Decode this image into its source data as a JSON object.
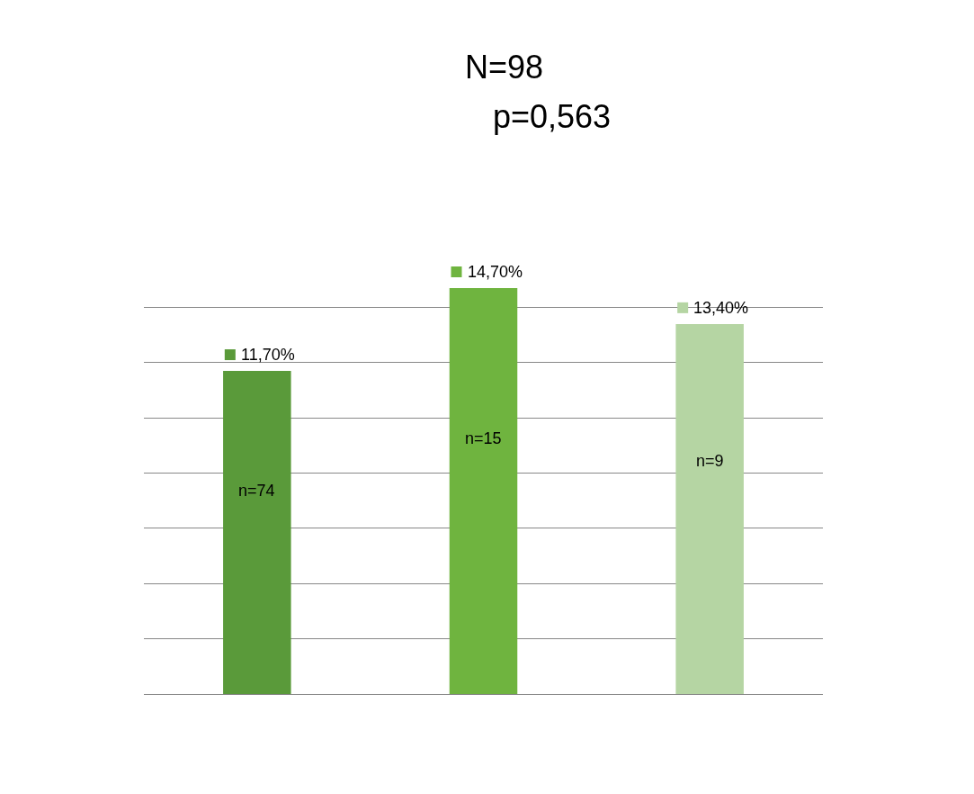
{
  "chart_data": {
    "type": "bar",
    "title": "N=98",
    "subtitle": "p=0,563",
    "categories": [
      null,
      null,
      null
    ],
    "values": [
      11.7,
      14.7,
      13.4
    ],
    "colors": [
      "#5a9a3a",
      "#6fb43f",
      "#b5d5a3"
    ],
    "value_labels": [
      "11,70%",
      "14,70%",
      "13,40%"
    ],
    "annotations": [
      "n=74",
      "n=15",
      "n=9"
    ],
    "grid": "y",
    "tick_labels": false
  }
}
